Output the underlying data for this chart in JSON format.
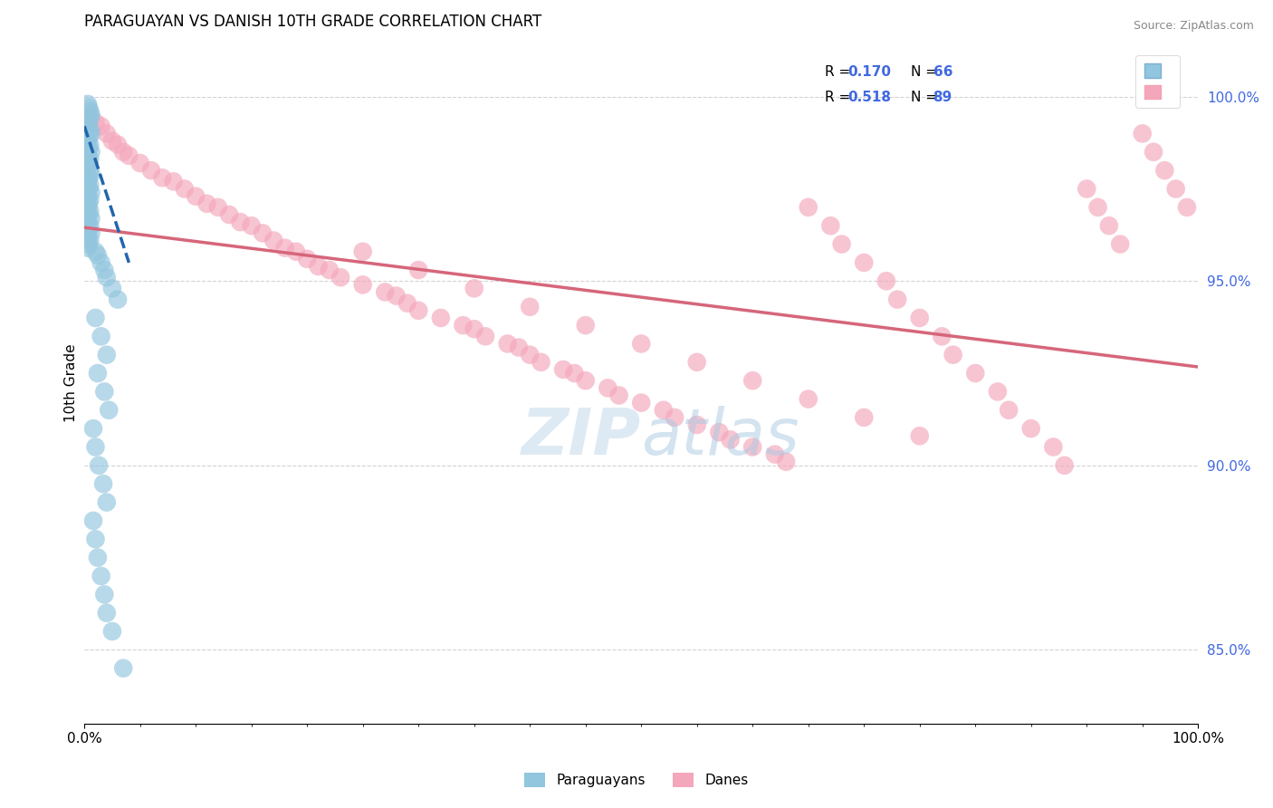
{
  "title": "PARAGUAYAN VS DANISH 10TH GRADE CORRELATION CHART",
  "source": "Source: ZipAtlas.com",
  "ylabel": "10th Grade",
  "xlim": [
    0.0,
    100.0
  ],
  "ylim": [
    83.0,
    101.5
  ],
  "yticks": [
    85.0,
    90.0,
    95.0,
    100.0
  ],
  "ytick_labels": [
    "85.0%",
    "90.0%",
    "95.0%",
    "100.0%"
  ],
  "legend_r_paraguayan": "R = 0.170",
  "legend_n_paraguayan": "N = 66",
  "legend_r_danish": "R = 0.518",
  "legend_n_danish": "N = 89",
  "color_paraguayan": "#92C5DE",
  "color_danish": "#F4A7BB",
  "color_trend_paraguayan": "#2166AC",
  "color_trend_danish": "#D6667A",
  "background_color": "#FFFFFF",
  "watermark_text": "ZIPatlas",
  "watermark_color": "#D0E4F0",
  "par_x": [
    0.3,
    0.5,
    0.4,
    0.6,
    0.5,
    0.3,
    0.4,
    0.5,
    0.6,
    0.4,
    0.3,
    0.5,
    0.4,
    0.6,
    0.3,
    0.5,
    0.4,
    0.3,
    0.5,
    0.6,
    0.4,
    0.3,
    0.5,
    0.4,
    0.6,
    0.3,
    0.5,
    0.4,
    0.3,
    0.5,
    0.4,
    0.6,
    0.3,
    0.5,
    0.4,
    0.6,
    0.3,
    0.5,
    0.4,
    0.3,
    1.0,
    1.2,
    1.5,
    1.8,
    2.0,
    2.5,
    3.0,
    1.0,
    1.5,
    2.0,
    1.2,
    1.8,
    2.2,
    0.8,
    1.0,
    1.3,
    1.7,
    2.0,
    0.8,
    1.0,
    1.2,
    1.5,
    1.8,
    2.0,
    2.5,
    3.5
  ],
  "par_y": [
    99.8,
    99.6,
    99.7,
    99.5,
    99.4,
    99.3,
    99.2,
    99.1,
    99.0,
    98.9,
    98.8,
    98.7,
    98.6,
    98.5,
    98.4,
    98.3,
    98.2,
    98.1,
    98.0,
    97.9,
    97.8,
    97.7,
    97.6,
    97.5,
    97.4,
    97.3,
    97.2,
    97.1,
    97.0,
    96.9,
    96.8,
    96.7,
    96.6,
    96.5,
    96.4,
    96.3,
    96.2,
    96.1,
    96.0,
    95.9,
    95.8,
    95.7,
    95.5,
    95.3,
    95.1,
    94.8,
    94.5,
    94.0,
    93.5,
    93.0,
    92.5,
    92.0,
    91.5,
    91.0,
    90.5,
    90.0,
    89.5,
    89.0,
    88.5,
    88.0,
    87.5,
    87.0,
    86.5,
    86.0,
    85.5,
    84.5
  ],
  "dan_x": [
    0.5,
    1.0,
    1.5,
    2.0,
    2.5,
    3.0,
    3.5,
    4.0,
    5.0,
    6.0,
    7.0,
    8.0,
    9.0,
    10.0,
    11.0,
    12.0,
    13.0,
    14.0,
    15.0,
    16.0,
    17.0,
    18.0,
    19.0,
    20.0,
    21.0,
    22.0,
    23.0,
    25.0,
    27.0,
    28.0,
    29.0,
    30.0,
    32.0,
    34.0,
    35.0,
    36.0,
    38.0,
    39.0,
    40.0,
    41.0,
    43.0,
    44.0,
    45.0,
    47.0,
    48.0,
    50.0,
    52.0,
    53.0,
    55.0,
    57.0,
    58.0,
    60.0,
    62.0,
    63.0,
    65.0,
    67.0,
    68.0,
    70.0,
    72.0,
    73.0,
    75.0,
    77.0,
    78.0,
    80.0,
    82.0,
    83.0,
    85.0,
    87.0,
    88.0,
    90.0,
    91.0,
    92.0,
    93.0,
    95.0,
    96.0,
    97.0,
    98.0,
    99.0,
    25.0,
    30.0,
    35.0,
    40.0,
    45.0,
    50.0,
    55.0,
    60.0,
    65.0,
    70.0,
    75.0
  ],
  "dan_y": [
    99.5,
    99.3,
    99.2,
    99.0,
    98.8,
    98.7,
    98.5,
    98.4,
    98.2,
    98.0,
    97.8,
    97.7,
    97.5,
    97.3,
    97.1,
    97.0,
    96.8,
    96.6,
    96.5,
    96.3,
    96.1,
    95.9,
    95.8,
    95.6,
    95.4,
    95.3,
    95.1,
    94.9,
    94.7,
    94.6,
    94.4,
    94.2,
    94.0,
    93.8,
    93.7,
    93.5,
    93.3,
    93.2,
    93.0,
    92.8,
    92.6,
    92.5,
    92.3,
    92.1,
    91.9,
    91.7,
    91.5,
    91.3,
    91.1,
    90.9,
    90.7,
    90.5,
    90.3,
    90.1,
    97.0,
    96.5,
    96.0,
    95.5,
    95.0,
    94.5,
    94.0,
    93.5,
    93.0,
    92.5,
    92.0,
    91.5,
    91.0,
    90.5,
    90.0,
    97.5,
    97.0,
    96.5,
    96.0,
    99.0,
    98.5,
    98.0,
    97.5,
    97.0,
    95.8,
    95.3,
    94.8,
    94.3,
    93.8,
    93.3,
    92.8,
    92.3,
    91.8,
    91.3,
    90.8
  ]
}
